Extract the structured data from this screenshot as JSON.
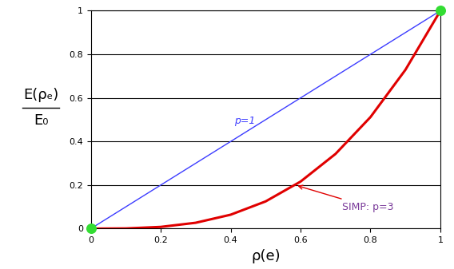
{
  "chart_data": {
    "type": "line",
    "x_label": "ρ(e)",
    "y_label": [
      "E(ρₑ)",
      "E₀"
    ],
    "xlim": [
      0,
      1
    ],
    "xticks": [
      0,
      0.2,
      0.4,
      0.6,
      0.8,
      1
    ],
    "ylim": [
      0,
      1
    ],
    "yticks": [
      0,
      0.2,
      0.4,
      0.6,
      0.8,
      1
    ],
    "grid": "y",
    "series": [
      {
        "name": "p=1",
        "color": "#3c3cff",
        "line_style": "solid",
        "x": [
          0,
          1
        ],
        "values": [
          0,
          1
        ]
      },
      {
        "name": "SIMP: p=3",
        "color": "#e00000",
        "line_style": "solid",
        "x": [
          0,
          0.1,
          0.2,
          0.3,
          0.4,
          0.5,
          0.6,
          0.7,
          0.8,
          0.9,
          1
        ],
        "values": [
          0,
          0.001,
          0.008,
          0.027,
          0.064,
          0.125,
          0.216,
          0.343,
          0.512,
          0.729,
          1
        ]
      },
      {
        "type": "scatter",
        "color": "#33dd33",
        "marker": "circle",
        "x": [
          0,
          1
        ],
        "values": [
          0,
          1
        ]
      }
    ]
  }
}
